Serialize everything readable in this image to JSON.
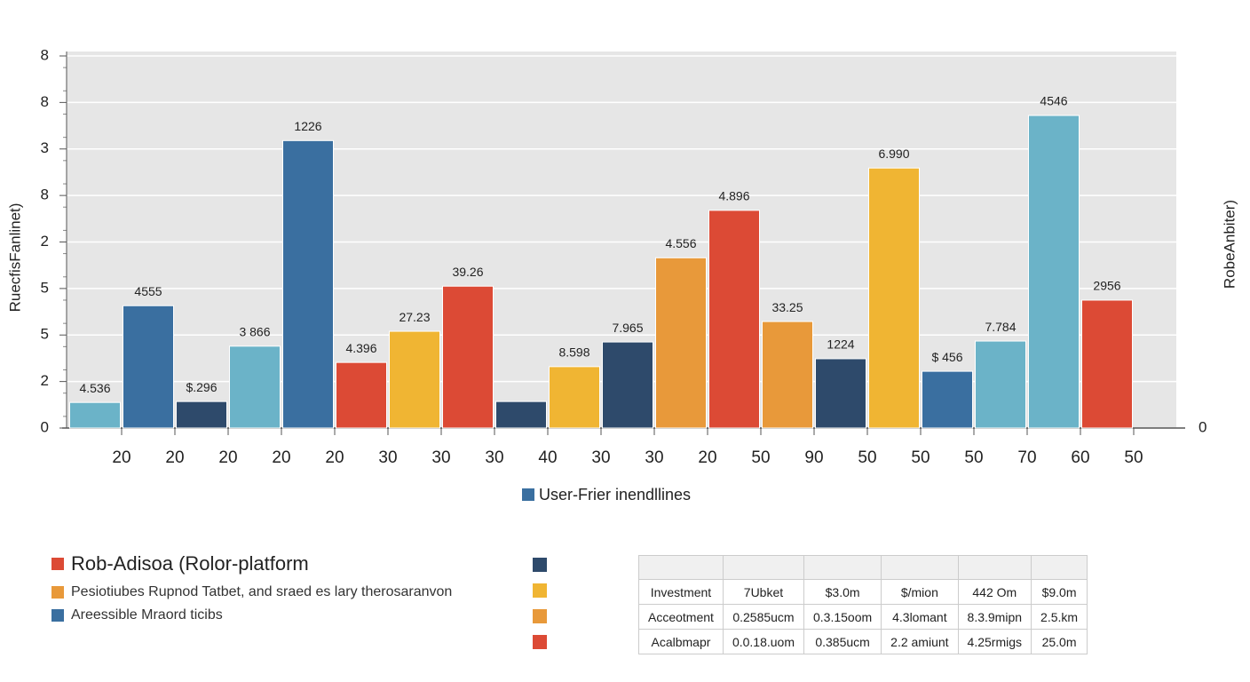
{
  "chart_data": {
    "type": "bar",
    "ylabel": "RuecfisFanlinet)",
    "y2label": "RobeAnbiter)",
    "categories": [
      "20",
      "20",
      "20",
      "20",
      "20",
      "30",
      "30",
      "30",
      "40",
      "30",
      "30",
      "20",
      "50",
      "90",
      "50",
      "50",
      "50",
      "70",
      "60",
      "50"
    ],
    "values": [
      0.55,
      2.63,
      0.57,
      1.76,
      6.18,
      1.41,
      2.08,
      3.05,
      0.57,
      1.32,
      1.85,
      3.66,
      4.68,
      2.29,
      1.49,
      5.59,
      1.22,
      1.87,
      6.72,
      2.75
    ],
    "colors": [
      "#6bb3c8",
      "#3a6fa0",
      "#2e4a6b",
      "#6bb3c8",
      "#3a6fa0",
      "#dc4a35",
      "#f0b533",
      "#dc4a35",
      "#2e4a6b",
      "#f0b533",
      "#2e4a6b",
      "#e8993a",
      "#dc4a35",
      "#e8993a",
      "#2e4a6b",
      "#f0b533",
      "#3a6fa0",
      "#6bb3c8",
      "#6bb3c8",
      "#dc4a35"
    ],
    "annotations": [
      "4.536",
      "4555",
      "$.296",
      "3 866",
      "1226",
      "4.396",
      "27.23",
      "39.26",
      null,
      "8.598",
      "7.965",
      "4.556",
      "4.896",
      "33.25",
      "1224",
      "6.990",
      "$ 456",
      "7.784",
      "4546",
      "2956"
    ],
    "ylim": [
      0,
      8
    ],
    "yticks": [
      0,
      {
        "value": 1,
        "label": "2"
      },
      {
        "value": 2,
        "label": "5"
      },
      {
        "value": 3,
        "label": "5"
      },
      {
        "value": 4,
        "label": "2"
      },
      {
        "value": 5,
        "label": "8"
      },
      {
        "value": 6,
        "label": "3"
      },
      {
        "value": 7,
        "label": "8"
      },
      8
    ],
    "y2lim": [
      0,
      8
    ],
    "y2ticks": [
      0
    ],
    "grid": true,
    "legend": {
      "label": "User-Frier inendllines",
      "color": "#3a6fa0"
    }
  },
  "legend_list": [
    {
      "label": "Rob-Adisoa (Rolor-platform",
      "color": "#dc4a35"
    },
    {
      "label": "Pesiotiubes Rupnod Tatbet, and sraed es lary therosaranvon",
      "color": "#e8993a"
    },
    {
      "label": "Areessible Mraord ticibs",
      "color": "#3a6fa0"
    }
  ],
  "swatches": [
    "#2e4a6b",
    "#f0b533",
    "#e8993a",
    "#dc4a35"
  ],
  "table": {
    "rows": [
      [
        "Investment",
        "7Ubket",
        "$3.0m",
        "$/mion",
        "442 Om",
        "$9.0m"
      ],
      [
        "Acceotment",
        "0.2585ucm",
        "0.3.15oom",
        "4.3lomant",
        "8.3.9mipn",
        "2.5.km"
      ],
      [
        "Acalbmapr",
        "0.0.18.uom",
        "0.385ucm",
        "2.2 amiunt",
        "4.25rmigs",
        "25.0m"
      ]
    ]
  }
}
